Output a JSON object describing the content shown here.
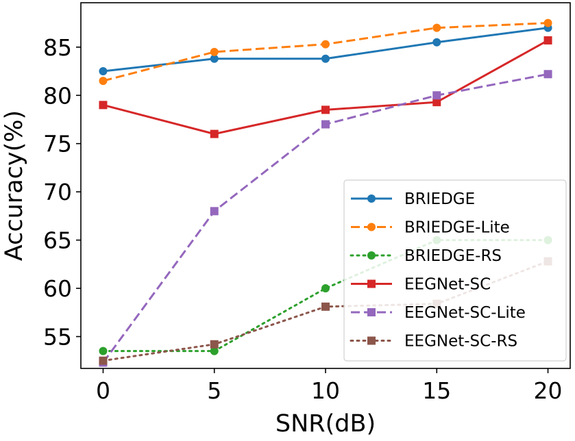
{
  "chart_data": {
    "type": "line",
    "xlabel": "SNR(dB)",
    "ylabel": "Accuracy(%)",
    "x": [
      0,
      5,
      10,
      15,
      20
    ],
    "xticks": [
      0,
      5,
      10,
      15,
      20
    ],
    "yticks": [
      55,
      60,
      65,
      70,
      75,
      80,
      85
    ],
    "xlim": [
      -1,
      21
    ],
    "ylim": [
      51.7,
      89.6
    ],
    "legend_position": "lower-right",
    "series": [
      {
        "name": "BRIEDGE",
        "values": [
          82.5,
          83.8,
          83.8,
          85.5,
          87.0
        ],
        "color": "#1f77b4",
        "dash": "solid",
        "marker": "circle"
      },
      {
        "name": "BRIEDGE-Lite",
        "values": [
          81.5,
          84.5,
          85.3,
          87.0,
          87.5
        ],
        "color": "#ff7f0e",
        "dash": "dashed",
        "marker": "circle"
      },
      {
        "name": "BRIEDGE-RS",
        "values": [
          53.5,
          53.5,
          60.0,
          65.0,
          65.0
        ],
        "color": "#2ca02c",
        "dash": "dotted",
        "marker": "circle"
      },
      {
        "name": "EEGNet-SC",
        "values": [
          79.0,
          76.0,
          78.5,
          79.3,
          85.7
        ],
        "color": "#d62728",
        "dash": "solid",
        "marker": "square"
      },
      {
        "name": "EEGNet-SC-Lite",
        "values": [
          52.3,
          68.0,
          77.0,
          80.0,
          82.2
        ],
        "color": "#9467bd",
        "dash": "dashed",
        "marker": "square"
      },
      {
        "name": "EEGNet-SC-RS",
        "values": [
          52.5,
          54.2,
          58.1,
          58.4,
          62.8
        ],
        "color": "#8c564b",
        "dash": "dotted",
        "marker": "square"
      }
    ]
  }
}
